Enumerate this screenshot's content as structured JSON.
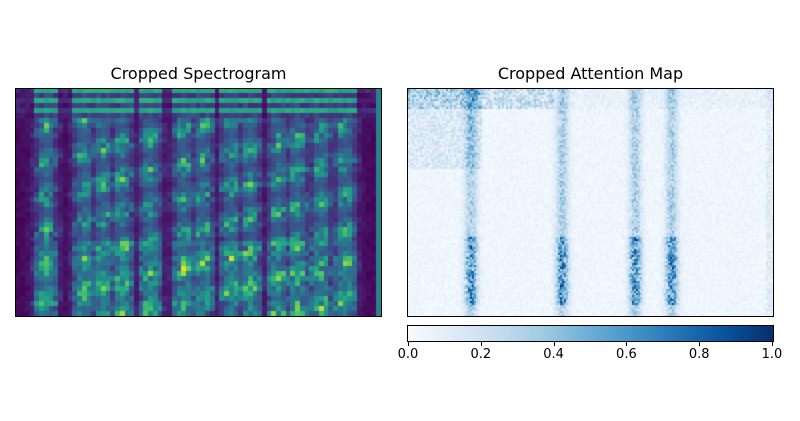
{
  "panels": [
    {
      "title": "Cropped Spectrogram",
      "colormap": "viridis"
    },
    {
      "title": "Cropped Attention Map",
      "colormap": "Blues"
    }
  ],
  "colorbar": {
    "colormap": "Blues",
    "min": 0.0,
    "max": 1.0,
    "tick_labels": [
      "0.0",
      "0.2",
      "0.4",
      "0.6",
      "0.8",
      "1.0"
    ],
    "tick_values": [
      0.0,
      0.2,
      0.4,
      0.6,
      0.8,
      1.0
    ]
  },
  "chart_data": [
    {
      "type": "heatmap",
      "title": "Cropped Spectrogram",
      "xlabel": "",
      "ylabel": "",
      "axis_ticks": false,
      "colormap": "viridis",
      "approx_time_bins": 77,
      "approx_freq_bins": 46,
      "bright_time_columns": [
        6,
        14,
        18,
        22,
        28,
        35,
        39,
        45,
        49,
        55,
        59,
        64,
        69
      ],
      "dark_right_edge_strip": true
    },
    {
      "type": "heatmap",
      "title": "Cropped Attention Map",
      "xlabel": "",
      "ylabel": "",
      "axis_ticks": false,
      "colormap": "Blues",
      "value_range": [
        0.0,
        1.0
      ],
      "approx_peak_time_positions": [
        0.17,
        0.42,
        0.62,
        0.72
      ],
      "peak_value": 1.0
    }
  ]
}
